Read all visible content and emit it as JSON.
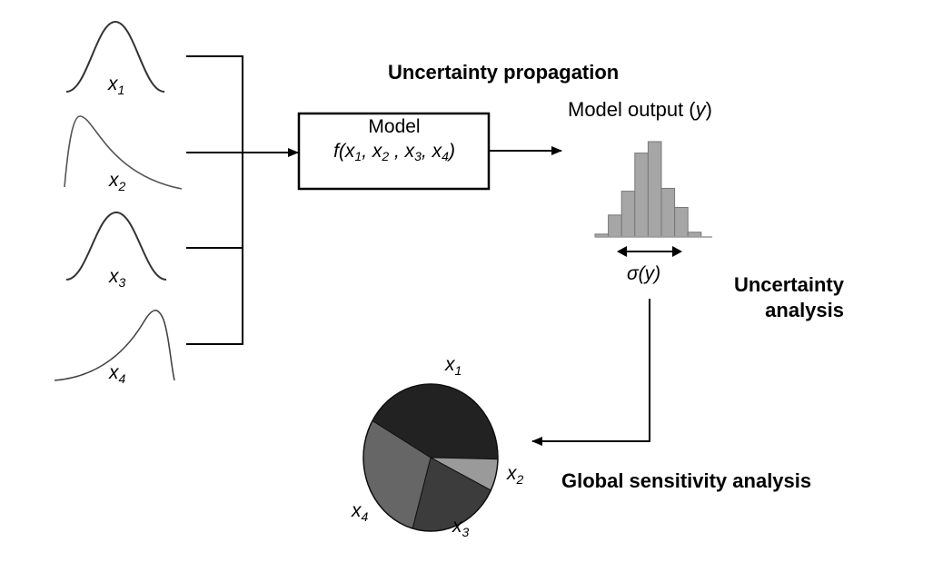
{
  "title": "Uncertainty propagation",
  "inputs": {
    "x1": {
      "symbol": "x",
      "index": "1"
    },
    "x2": {
      "symbol": "x",
      "index": "2"
    },
    "x3": {
      "symbol": "x",
      "index": "3"
    },
    "x4": {
      "symbol": "x",
      "index": "4"
    }
  },
  "model": {
    "name": "Model",
    "function": "f(",
    "args": [
      {
        "sym": "x",
        "idx": "1",
        "sep": ", "
      },
      {
        "sym": "x",
        "idx": "2",
        "sep": " , "
      },
      {
        "sym": "x",
        "idx": "3",
        "sep": ", "
      },
      {
        "sym": "x",
        "idx": "4",
        "sep": ")"
      }
    ]
  },
  "output": {
    "label_prefix": "Model output (",
    "label_var": "y",
    "label_suffix": ")",
    "spread_label": "σ(y)",
    "histogram_heights": [
      0.03,
      0.23,
      0.48,
      0.88,
      1.0,
      0.51,
      0.31,
      0.05
    ]
  },
  "uncertainty_analysis": {
    "line1": "Uncertainty",
    "line2": "analysis"
  },
  "sensitivity": {
    "label": "Global sensitivity analysis",
    "slices": [
      {
        "var": "x",
        "idx": "1",
        "share": 0.42,
        "color": "#222222"
      },
      {
        "var": "x",
        "idx": "2",
        "share": 0.07,
        "color": "#9a9a9a"
      },
      {
        "var": "x",
        "idx": "3",
        "share": 0.22,
        "color": "#3c3c3c"
      },
      {
        "var": "x",
        "idx": "4",
        "share": 0.29,
        "color": "#666666"
      }
    ]
  },
  "colors": {
    "line": "#000000",
    "curve": "#333333",
    "bar": "#a6a6a6",
    "bar_edge": "#777777"
  }
}
